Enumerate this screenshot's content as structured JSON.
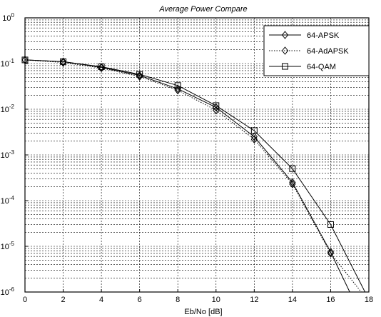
{
  "chart_data": {
    "type": "line",
    "title": "Average Power Compare",
    "xlabel": "Eb/No [dB]",
    "ylabel": "",
    "xlim": [
      0,
      18
    ],
    "ylim": [
      1e-06,
      1
    ],
    "yscale": "log",
    "grid": true,
    "legend_position": "top-right",
    "x_ticks": [
      0,
      2,
      4,
      6,
      8,
      10,
      12,
      14,
      16,
      18
    ],
    "y_ticks": [
      {
        "value": 1,
        "base": "10",
        "exp": "0"
      },
      {
        "value": 0.1,
        "base": "10",
        "exp": "-1"
      },
      {
        "value": 0.01,
        "base": "10",
        "exp": "-2"
      },
      {
        "value": 0.001,
        "base": "10",
        "exp": "-3"
      },
      {
        "value": 0.0001,
        "base": "10",
        "exp": "-4"
      },
      {
        "value": 1e-05,
        "base": "10",
        "exp": "-5"
      },
      {
        "value": 1e-06,
        "base": "10",
        "exp": "-6"
      }
    ],
    "series": [
      {
        "name": "64-APSK",
        "marker": "diamond",
        "line": "solid",
        "x": [
          0,
          2,
          4,
          6,
          8,
          10,
          12,
          14,
          16,
          17
        ],
        "y": [
          0.12,
          0.11,
          0.083,
          0.055,
          0.028,
          0.011,
          0.0025,
          0.00025,
          7.5e-06,
          1e-06
        ]
      },
      {
        "name": "64-AdAPSK",
        "marker": "diamond",
        "line": "dotted",
        "x": [
          0,
          2,
          4,
          6,
          8,
          10,
          12,
          14,
          16,
          17.6
        ],
        "y": [
          0.12,
          0.105,
          0.08,
          0.052,
          0.026,
          0.0095,
          0.0022,
          0.00023,
          7e-06,
          1e-06
        ]
      },
      {
        "name": "64-QAM",
        "marker": "square",
        "line": "solid",
        "x": [
          0,
          2,
          4,
          6,
          8,
          10,
          12,
          14,
          16,
          17.8
        ],
        "y": [
          0.12,
          0.11,
          0.085,
          0.058,
          0.033,
          0.012,
          0.0034,
          0.0005,
          3e-05,
          1e-06
        ]
      }
    ]
  }
}
